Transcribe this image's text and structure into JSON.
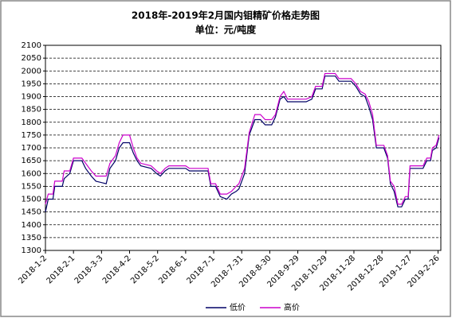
{
  "chart_data": {
    "type": "line",
    "title": "2018年-2019年2月国内钼精矿价格走势图",
    "subtitle": "单位：元/吨度",
    "x": [
      "2018-1-2",
      "2018-1-5",
      "2018-1-10",
      "2018-1-12",
      "2018-1-20",
      "2018-1-22",
      "2018-1-28",
      "2018-2-1",
      "2018-2-10",
      "2018-2-14",
      "2018-2-20",
      "2018-2-25",
      "2018-3-8",
      "2018-3-12",
      "2018-3-18",
      "2018-3-22",
      "2018-3-26",
      "2018-4-2",
      "2018-4-6",
      "2018-4-10",
      "2018-4-14",
      "2018-4-25",
      "2018-5-1",
      "2018-5-5",
      "2018-5-10",
      "2018-5-14",
      "2018-6-1",
      "2018-6-5",
      "2018-6-25",
      "2018-6-28",
      "2018-7-3",
      "2018-7-8",
      "2018-7-15",
      "2018-7-20",
      "2018-7-25",
      "2018-7-28",
      "2018-8-3",
      "2018-8-8",
      "2018-8-14",
      "2018-8-20",
      "2018-8-25",
      "2018-9-1",
      "2018-9-5",
      "2018-9-10",
      "2018-9-14",
      "2018-9-18",
      "2018-9-25",
      "2018-10-8",
      "2018-10-14",
      "2018-10-18",
      "2018-10-25",
      "2018-10-28",
      "2018-11-8",
      "2018-11-12",
      "2018-11-25",
      "2018-11-30",
      "2018-12-5",
      "2018-12-10",
      "2018-12-14",
      "2018-12-18",
      "2018-12-22",
      "2018-12-30",
      "2019-1-3",
      "2019-1-6",
      "2019-1-10",
      "2019-1-14",
      "2019-1-18",
      "2019-1-22",
      "2019-1-25",
      "2019-1-27",
      "2019-2-10",
      "2019-2-14",
      "2019-2-18",
      "2019-2-20",
      "2019-2-24",
      "2019-2-27"
    ],
    "series": [
      {
        "name": "低价",
        "color": "#000066",
        "values": [
          1450,
          1500,
          1500,
          1550,
          1550,
          1580,
          1600,
          1650,
          1650,
          1620,
          1590,
          1570,
          1560,
          1620,
          1650,
          1700,
          1720,
          1720,
          1680,
          1650,
          1630,
          1620,
          1600,
          1590,
          1610,
          1620,
          1620,
          1610,
          1610,
          1550,
          1550,
          1510,
          1500,
          1520,
          1530,
          1540,
          1600,
          1750,
          1810,
          1810,
          1790,
          1790,
          1820,
          1890,
          1900,
          1880,
          1880,
          1880,
          1890,
          1930,
          1930,
          1980,
          1980,
          1960,
          1960,
          1940,
          1910,
          1900,
          1860,
          1810,
          1700,
          1700,
          1660,
          1560,
          1530,
          1470,
          1470,
          1500,
          1500,
          1620,
          1620,
          1650,
          1650,
          1690,
          1700,
          1740
        ]
      },
      {
        "name": "高价",
        "color": "#cc00cc",
        "values": [
          1480,
          1520,
          1520,
          1570,
          1570,
          1610,
          1610,
          1660,
          1660,
          1640,
          1610,
          1590,
          1590,
          1640,
          1670,
          1720,
          1750,
          1750,
          1700,
          1660,
          1640,
          1630,
          1610,
          1600,
          1620,
          1630,
          1630,
          1620,
          1620,
          1560,
          1560,
          1520,
          1520,
          1530,
          1550,
          1560,
          1620,
          1760,
          1830,
          1830,
          1810,
          1810,
          1830,
          1900,
          1920,
          1890,
          1890,
          1890,
          1900,
          1940,
          1940,
          1990,
          1990,
          1970,
          1970,
          1950,
          1920,
          1910,
          1880,
          1830,
          1710,
          1710,
          1670,
          1570,
          1550,
          1480,
          1480,
          1510,
          1510,
          1630,
          1630,
          1660,
          1660,
          1700,
          1710,
          1750
        ]
      }
    ],
    "xlim": [
      "2018-1-2",
      "2019-3-1"
    ],
    "xticks": [
      "2018-1-2",
      "2018-2-1",
      "2018-3-3",
      "2018-4-2",
      "2018-5-2",
      "2018-6-1",
      "2018-7-1",
      "2018-7-31",
      "2018-8-30",
      "2018-9-29",
      "2018-10-29",
      "2018-11-28",
      "2018-12-28",
      "2019-1-27",
      "2019-2-26"
    ],
    "ylim": [
      1300,
      2100
    ],
    "yticks": [
      1300,
      1350,
      1400,
      1450,
      1500,
      1550,
      1600,
      1650,
      1700,
      1750,
      1800,
      1850,
      1900,
      1950,
      2000,
      2050,
      2100
    ],
    "grid": true,
    "legend": "bottom"
  }
}
